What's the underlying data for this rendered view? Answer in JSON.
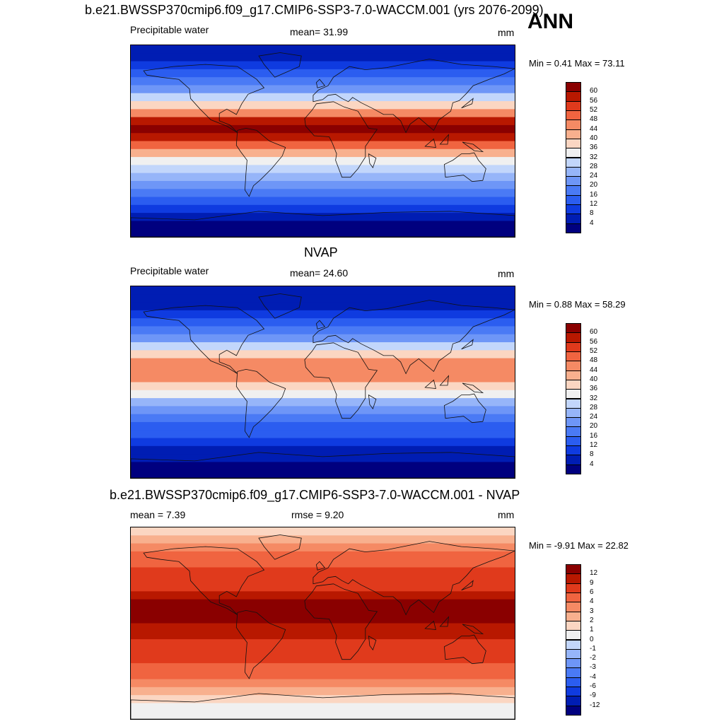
{
  "header": {
    "main_title": "b.e21.BWSSP370cmip6.f09_g17.CMIP6-SSP3-7.0-WACCM.001 (yrs 2076-2099)",
    "season": "ANN"
  },
  "chart_data": [
    {
      "type": "heatmap",
      "panel": "model",
      "left_label": "Precipitable water",
      "center_label": "mean=  31.99",
      "units": "mm",
      "minmax": "Min =   0.41 Max =  73.11",
      "colorbar": {
        "levels": [
          "4",
          "8",
          "12",
          "16",
          "20",
          "24",
          "28",
          "32",
          "36",
          "40",
          "44",
          "48",
          "52",
          "56",
          "60"
        ],
        "colors": [
          "#00007f",
          "#001db3",
          "#0f3be0",
          "#2b5df0",
          "#4a7af5",
          "#6e96f7",
          "#96b5f9",
          "#c2d6fb",
          "#f0f0f0",
          "#fbd6c2",
          "#f8b08e",
          "#f58a64",
          "#f06440",
          "#e03a1c",
          "#b81800",
          "#8a0000"
        ]
      },
      "field": {
        "lat_profile": [
          2,
          3,
          5,
          8,
          12,
          16,
          20,
          24,
          28,
          34,
          42,
          50,
          58,
          62,
          58,
          46,
          36,
          28,
          20,
          16,
          12,
          9,
          7,
          5
        ],
        "lat_range": [
          -90,
          90
        ],
        "lon_range": [
          -180,
          180
        ]
      }
    },
    {
      "type": "heatmap",
      "panel": "obs",
      "top_title": "NVAP",
      "left_label": "Precipitable water",
      "center_label": "mean=  24.60",
      "units": "mm",
      "minmax": "Min =   0.88 Max =  58.29",
      "colorbar": {
        "levels": [
          "4",
          "8",
          "12",
          "16",
          "20",
          "24",
          "28",
          "32",
          "36",
          "40",
          "44",
          "48",
          "52",
          "56",
          "60"
        ],
        "colors": [
          "#00007f",
          "#001db3",
          "#0f3be0",
          "#2b5df0",
          "#4a7af5",
          "#6e96f7",
          "#96b5f9",
          "#c2d6fb",
          "#f0f0f0",
          "#fbd6c2",
          "#f8b08e",
          "#f58a64",
          "#f06440",
          "#e03a1c",
          "#b81800",
          "#8a0000"
        ]
      },
      "field": {
        "lat_profile": [
          2,
          3,
          4,
          6,
          9,
          12,
          15,
          18,
          22,
          27,
          33,
          39,
          44,
          47,
          44,
          36,
          28,
          22,
          16,
          12,
          9,
          7,
          5,
          4
        ],
        "lat_range": [
          -90,
          90
        ],
        "lon_range": [
          -180,
          180
        ]
      }
    },
    {
      "type": "heatmap",
      "panel": "difference",
      "top_title": "b.e21.BWSSP370cmip6.f09_g17.CMIP6-SSP3-7.0-WACCM.001 - NVAP",
      "left_label": "mean =   7.39",
      "center_label": "rmse =   9.20",
      "units": "mm",
      "minmax": "Min =  -9.91 Max =  22.82",
      "colorbar": {
        "levels": [
          "-12",
          "-9",
          "-6",
          "-4",
          "-3",
          "-2",
          "-1",
          "0",
          "1",
          "2",
          "3",
          "4",
          "6",
          "9",
          "12"
        ],
        "colors": [
          "#00007f",
          "#001db3",
          "#0f3be0",
          "#2b5df0",
          "#4a7af5",
          "#6e96f7",
          "#96b5f9",
          "#c2d6fb",
          "#f0f0f0",
          "#fbd6c2",
          "#f8b08e",
          "#f58a64",
          "#f06440",
          "#e03a1c",
          "#b81800",
          "#8a0000"
        ]
      },
      "field": {
        "lat_profile": [
          0.3,
          0.6,
          1.5,
          2.5,
          3.5,
          4.5,
          5.2,
          6,
          6.5,
          7.5,
          9,
          11,
          13,
          14,
          13,
          10,
          8,
          7,
          6,
          5,
          4,
          3,
          2,
          1
        ],
        "lat_range": [
          -90,
          90
        ],
        "lon_range": [
          -180,
          180
        ]
      }
    }
  ]
}
